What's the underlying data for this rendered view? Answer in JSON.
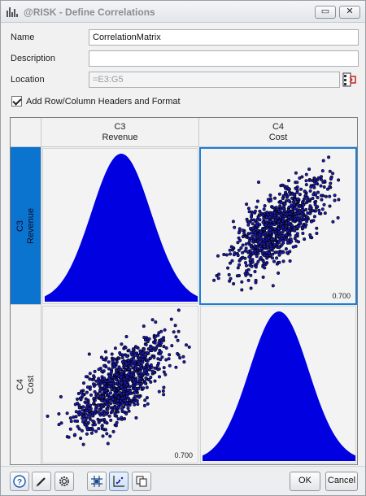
{
  "window": {
    "title": "@RISK - Define Correlations",
    "minimize_glyph": "▭",
    "close_glyph": "✕"
  },
  "form": {
    "name_label": "Name",
    "name_value": "CorrelationMatrix",
    "description_label": "Description",
    "description_value": "",
    "location_label": "Location",
    "location_value": "=E3:G5",
    "headers_checkbox_label": "Add Row/Column Headers and Format",
    "headers_checkbox_checked": true
  },
  "matrix": {
    "columns": [
      {
        "ref": "C3",
        "name": "Revenue"
      },
      {
        "ref": "C4",
        "name": "Cost"
      }
    ],
    "rows": [
      {
        "ref": "C3",
        "name": "Revenue",
        "active": true
      },
      {
        "ref": "C4",
        "name": "Cost",
        "active": false
      }
    ],
    "correlation": "0.700",
    "histogram_color": "#0000e0",
    "scatter_color": "#1a1ab8",
    "selection_color": "#1b7fd6",
    "header_highlight_color": "#0b74cf"
  },
  "chart_data": [
    {
      "type": "area",
      "title": "",
      "variable": "Revenue",
      "shape": "normal density",
      "note": "marginal distribution"
    },
    {
      "type": "scatter",
      "title": "",
      "x_variable": "Cost",
      "y_variable": "Revenue",
      "correlation": 0.7,
      "label": "0.700",
      "points": 1000
    },
    {
      "type": "scatter",
      "title": "",
      "x_variable": "Revenue",
      "y_variable": "Cost",
      "correlation": 0.7,
      "label": "0.700",
      "points": 1000
    },
    {
      "type": "area",
      "title": "",
      "variable": "Cost",
      "shape": "normal density",
      "note": "marginal distribution"
    }
  ],
  "bottom": {
    "help_icon": "help-icon",
    "edit_icon": "pencil-icon",
    "settings_icon": "gear-icon",
    "matrix_view_icon": "matrix-grid-icon",
    "scatter_view_icon": "scatter-view-icon",
    "copy_icon": "copy-icon",
    "ok_label": "OK",
    "cancel_label": "Cancel"
  }
}
